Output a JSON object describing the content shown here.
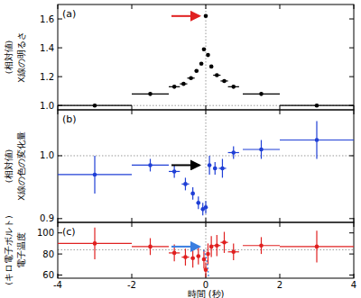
{
  "chart_data": [
    {
      "type": "scatter",
      "title": "(a)",
      "y_label": [
        "X線の明るさ",
        "(相対値)"
      ],
      "color": "#000000",
      "marker": "circle",
      "x": [
        -3.0,
        -1.5,
        -0.85,
        -0.6,
        -0.4,
        -0.25,
        -0.12,
        -0.05,
        0.0,
        0.06,
        0.15,
        0.3,
        0.5,
        0.75,
        1.5,
        3.0
      ],
      "values": [
        1.0,
        1.08,
        1.13,
        1.15,
        1.19,
        1.24,
        1.29,
        1.39,
        1.62,
        1.35,
        1.27,
        1.21,
        1.17,
        1.13,
        1.08,
        1.0
      ],
      "x_errors": [
        1.0,
        0.5,
        0.15,
        0.1,
        0.1,
        0.05,
        0.05,
        0.03,
        0.02,
        0.03,
        0.05,
        0.1,
        0.1,
        0.15,
        0.5,
        1.0
      ],
      "xlim": [
        -4,
        4
      ],
      "xticks": [
        -4,
        -2,
        0,
        2,
        4
      ],
      "ylim": [
        0.97,
        1.7
      ],
      "yticks": [
        {
          "value": 1.0,
          "label": "1.0"
        },
        1.2,
        1.4,
        1.6
      ],
      "baseline": 1.0,
      "baseline_x": 0,
      "tick_labels": "y"
    },
    {
      "type": "scatter",
      "title": "(b)",
      "y_label": [
        "X線の色の変化量",
        "(相対値)"
      ],
      "color": "#1f3fd6",
      "marker": "circle",
      "x": [
        -3.0,
        -1.5,
        -0.85,
        -0.55,
        -0.35,
        -0.2,
        -0.08,
        0.0,
        0.1,
        0.25,
        0.45,
        0.75,
        1.5,
        3.0
      ],
      "values": [
        0.97,
        0.985,
        0.975,
        0.955,
        0.94,
        0.925,
        0.915,
        0.918,
        0.985,
        0.98,
        0.98,
        1.005,
        1.01,
        1.025
      ],
      "x_errors": [
        1.0,
        0.5,
        0.15,
        0.1,
        0.05,
        0.05,
        0.03,
        0.03,
        0.03,
        0.05,
        0.1,
        0.15,
        0.5,
        1.0
      ],
      "y_errors": [
        0.03,
        0.01,
        0.01,
        0.01,
        0.01,
        0.01,
        0.01,
        0.01,
        0.015,
        0.01,
        0.015,
        0.01,
        0.015,
        0.03
      ],
      "xlim": [
        -4,
        4
      ],
      "xticks": [
        -4,
        -2,
        0,
        2,
        4
      ],
      "ylim": [
        0.894,
        1.073
      ],
      "yticks": [
        0.9,
        {
          "value": 1.0,
          "label": "1.0"
        }
      ],
      "baseline": 1.0,
      "baseline_x": 0,
      "tick_labels": "y"
    },
    {
      "type": "scatter",
      "title": "(c)",
      "y_label": [
        "電子温度",
        "(キロ電子ボルト)"
      ],
      "x_label": "時間 (秒)",
      "color": "#e02020",
      "marker": "circle",
      "x": [
        -3.0,
        -1.5,
        -0.85,
        -0.55,
        -0.35,
        -0.2,
        -0.05,
        0.0,
        0.06,
        0.15,
        0.3,
        0.5,
        0.75,
        1.5,
        3.0
      ],
      "values": [
        90,
        87,
        81,
        77,
        76,
        78,
        75,
        65,
        80,
        87,
        88,
        91,
        82,
        88,
        87
      ],
      "x_errors": [
        1.0,
        0.5,
        0.15,
        0.1,
        0.05,
        0.05,
        0.03,
        0.02,
        0.03,
        0.05,
        0.1,
        0.1,
        0.15,
        0.5,
        1.0
      ],
      "y_errors": [
        15,
        8,
        8,
        8,
        9,
        8,
        9,
        7,
        10,
        10,
        10,
        10,
        8,
        8,
        15
      ],
      "xlim": [
        -4,
        4
      ],
      "xticks": [
        -4,
        -2,
        0,
        2,
        4
      ],
      "ylim": [
        57,
        110
      ],
      "yticks": [
        60,
        80,
        100
      ],
      "baseline": 84,
      "baseline_x": 0
    }
  ]
}
